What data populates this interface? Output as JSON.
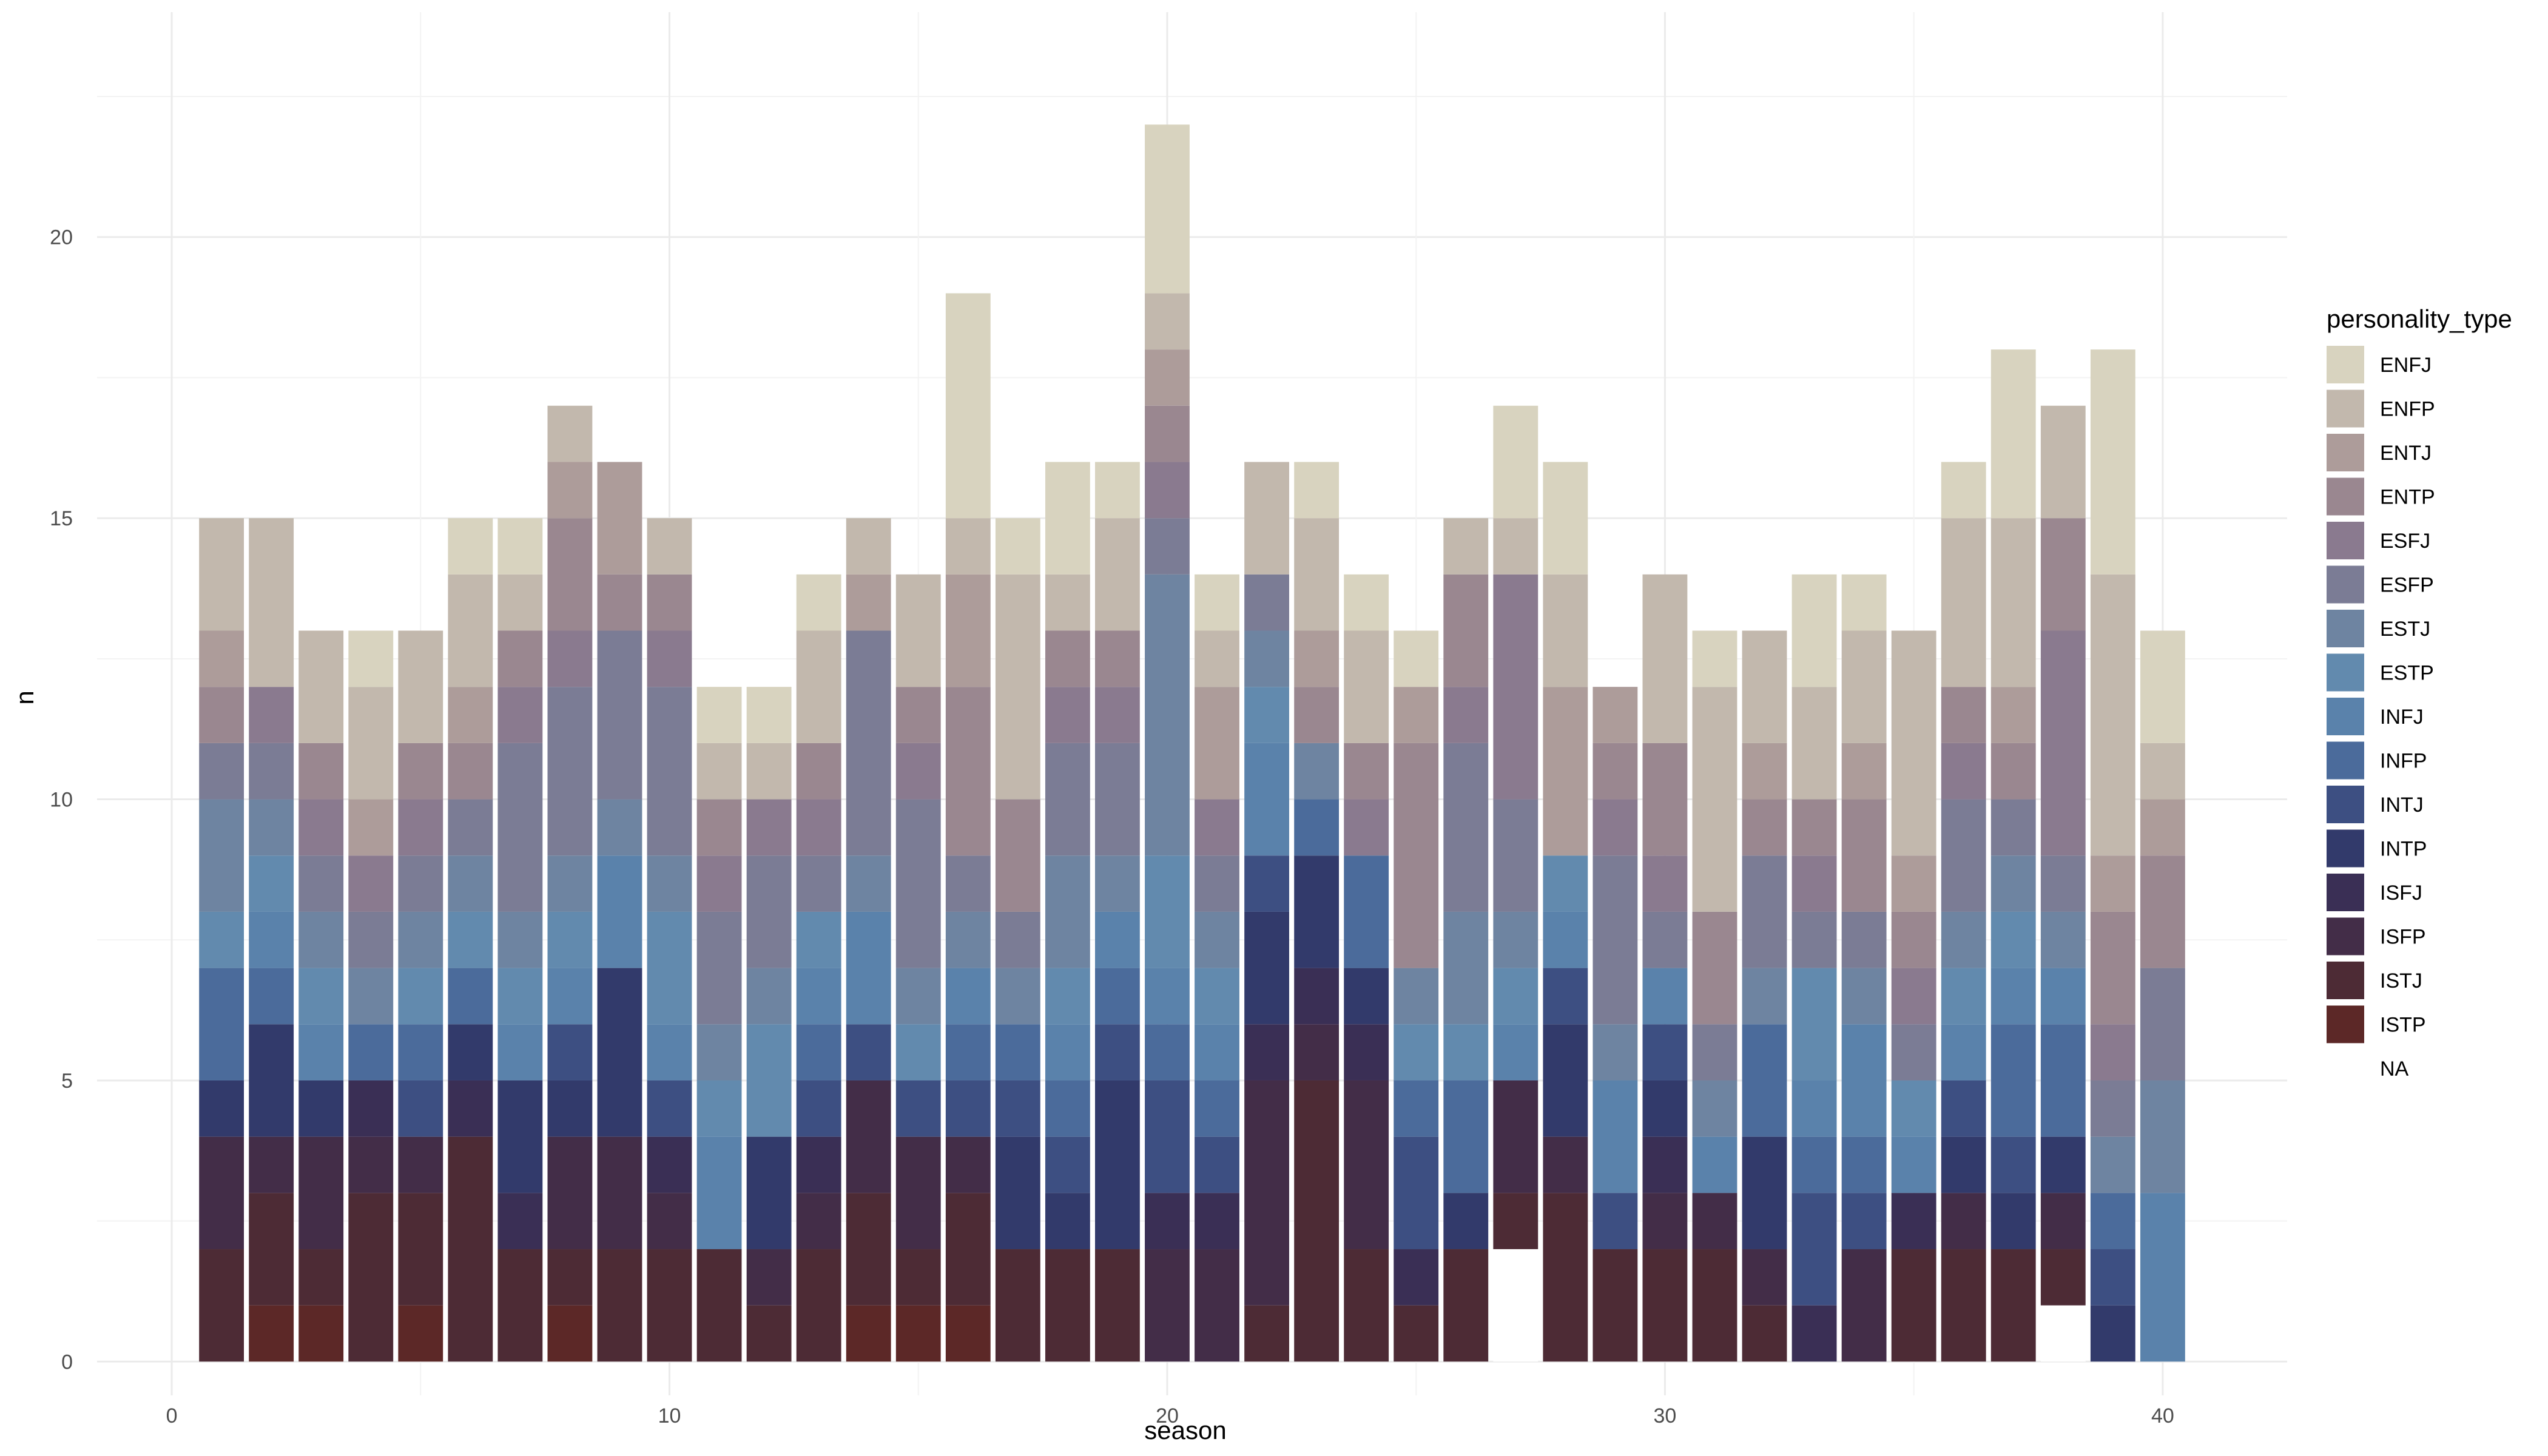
{
  "chart_data": {
    "type": "bar",
    "stacked": true,
    "xlabel": "season",
    "ylabel": "n",
    "xlim": [
      -1.5,
      42.5
    ],
    "ylim": [
      -0.6,
      24
    ],
    "x_ticks": [
      0,
      10,
      20,
      30,
      40
    ],
    "y_ticks": [
      0,
      5,
      10,
      15,
      20
    ],
    "grid": true,
    "legend": {
      "title": "personality_type",
      "position": "right"
    },
    "types": [
      "ENFJ",
      "ENFP",
      "ENTJ",
      "ENTP",
      "ESFJ",
      "ESFP",
      "ESTJ",
      "ESTP",
      "INFJ",
      "INFP",
      "INTJ",
      "INTP",
      "ISFJ",
      "ISFP",
      "ISTJ",
      "ISTP",
      "NA"
    ],
    "colors": {
      "ENFJ": "#d8d3bf",
      "ENFP": "#c2b8ad",
      "ENTJ": "#ad9c9a",
      "ENTP": "#9a8790",
      "ESFJ": "#8a7a8f",
      "ESFP": "#7b7c95",
      "ESTJ": "#6e84a1",
      "ESTP": "#628aae",
      "INFJ": "#5a82ab",
      "INFP": "#4b6b9b",
      "INTJ": "#3d4f82",
      "INTP": "#323a6b",
      "ISFJ": "#3a2f55",
      "ISFP": "#432d48",
      "ISTJ": "#4d2b35",
      "ISTP": "#5c2827",
      "NA": "#ffffff"
    },
    "x": [
      1,
      2,
      3,
      4,
      5,
      6,
      7,
      8,
      9,
      10,
      11,
      12,
      13,
      14,
      15,
      16,
      17,
      18,
      19,
      20,
      21,
      22,
      23,
      24,
      25,
      26,
      27,
      28,
      29,
      30,
      31,
      32,
      33,
      34,
      35,
      36,
      37,
      38,
      39,
      40
    ],
    "series": [
      {
        "name": "ENFJ",
        "values": [
          0,
          0,
          0,
          1,
          0,
          1,
          1,
          0,
          0,
          0,
          1,
          1,
          1,
          0,
          0,
          4,
          1,
          2,
          1,
          3,
          1,
          0,
          1,
          1,
          1,
          0,
          2,
          2,
          0,
          0,
          1,
          0,
          2,
          1,
          0,
          1,
          3,
          0,
          4,
          2
        ]
      },
      {
        "name": "ENFP",
        "values": [
          2,
          3,
          2,
          2,
          2,
          2,
          1,
          1,
          0,
          1,
          1,
          1,
          2,
          1,
          2,
          1,
          4,
          1,
          2,
          1,
          1,
          2,
          2,
          2,
          0,
          1,
          1,
          2,
          0,
          3,
          4,
          2,
          2,
          2,
          4,
          3,
          3,
          2,
          5,
          1
        ]
      },
      {
        "name": "ENTJ",
        "values": [
          1,
          0,
          0,
          1,
          0,
          1,
          0,
          1,
          2,
          0,
          0,
          0,
          0,
          1,
          0,
          2,
          0,
          0,
          0,
          1,
          2,
          0,
          1,
          0,
          1,
          0,
          0,
          3,
          1,
          0,
          0,
          1,
          0,
          1,
          1,
          0,
          1,
          0,
          1,
          1
        ]
      },
      {
        "name": "ENTP",
        "values": [
          1,
          0,
          1,
          0,
          1,
          1,
          1,
          2,
          1,
          1,
          1,
          0,
          1,
          0,
          1,
          3,
          2,
          1,
          1,
          1,
          0,
          0,
          1,
          1,
          4,
          2,
          0,
          0,
          1,
          2,
          2,
          1,
          1,
          2,
          1,
          1,
          1,
          2,
          2,
          2
        ]
      },
      {
        "name": "ESFJ",
        "values": [
          0,
          1,
          1,
          1,
          1,
          0,
          1,
          1,
          0,
          1,
          1,
          1,
          1,
          0,
          1,
          0,
          0,
          1,
          1,
          1,
          1,
          0,
          0,
          1,
          0,
          1,
          4,
          0,
          1,
          1,
          0,
          0,
          1,
          0,
          1,
          1,
          0,
          4,
          1,
          0
        ]
      },
      {
        "name": "ESFP",
        "values": [
          1,
          1,
          1,
          1,
          1,
          1,
          3,
          3,
          3,
          3,
          2,
          2,
          1,
          4,
          3,
          1,
          1,
          2,
          2,
          1,
          1,
          1,
          0,
          0,
          0,
          3,
          2,
          0,
          3,
          1,
          1,
          2,
          1,
          1,
          1,
          2,
          1,
          1,
          1,
          2
        ]
      },
      {
        "name": "ESTJ",
        "values": [
          2,
          1,
          1,
          1,
          1,
          1,
          1,
          1,
          1,
          1,
          1,
          1,
          0,
          1,
          1,
          1,
          1,
          2,
          1,
          5,
          1,
          1,
          1,
          0,
          1,
          2,
          1,
          0,
          1,
          0,
          1,
          1,
          0,
          1,
          0,
          1,
          1,
          1,
          1,
          2
        ]
      },
      {
        "name": "ESTP",
        "values": [
          1,
          1,
          1,
          0,
          1,
          1,
          1,
          1,
          0,
          2,
          1,
          2,
          1,
          0,
          1,
          0,
          0,
          1,
          0,
          2,
          1,
          1,
          0,
          0,
          1,
          1,
          1,
          1,
          0,
          0,
          0,
          0,
          2,
          0,
          1,
          1,
          1,
          0,
          0,
          0
        ]
      },
      {
        "name": "INFJ",
        "values": [
          0,
          1,
          1,
          0,
          0,
          0,
          1,
          1,
          2,
          1,
          2,
          0,
          1,
          2,
          0,
          1,
          0,
          1,
          1,
          1,
          1,
          2,
          0,
          0,
          0,
          0,
          1,
          1,
          2,
          1,
          1,
          0,
          1,
          2,
          1,
          1,
          1,
          1,
          0,
          3
        ]
      },
      {
        "name": "INFP",
        "values": [
          2,
          1,
          0,
          1,
          1,
          1,
          0,
          0,
          0,
          0,
          0,
          0,
          1,
          0,
          0,
          1,
          1,
          1,
          1,
          1,
          1,
          0,
          1,
          2,
          1,
          2,
          0,
          0,
          0,
          0,
          0,
          2,
          1,
          1,
          0,
          0,
          2,
          2,
          1,
          0
        ]
      },
      {
        "name": "INTJ",
        "values": [
          0,
          0,
          0,
          0,
          1,
          0,
          0,
          1,
          0,
          1,
          0,
          0,
          1,
          1,
          1,
          1,
          1,
          1,
          1,
          2,
          1,
          1,
          0,
          0,
          2,
          0,
          0,
          1,
          1,
          1,
          0,
          0,
          2,
          1,
          0,
          1,
          1,
          0,
          1,
          0
        ]
      },
      {
        "name": "INTP",
        "values": [
          1,
          2,
          1,
          0,
          0,
          1,
          2,
          1,
          3,
          0,
          0,
          2,
          0,
          0,
          0,
          0,
          2,
          1,
          3,
          0,
          0,
          2,
          2,
          1,
          0,
          1,
          0,
          2,
          0,
          1,
          0,
          2,
          0,
          0,
          0,
          1,
          1,
          1,
          1,
          0
        ]
      },
      {
        "name": "ISFJ",
        "values": [
          0,
          0,
          0,
          1,
          0,
          1,
          1,
          0,
          0,
          1,
          0,
          0,
          1,
          0,
          0,
          0,
          0,
          0,
          0,
          1,
          1,
          1,
          1,
          1,
          1,
          0,
          0,
          0,
          0,
          1,
          0,
          0,
          1,
          0,
          1,
          0,
          0,
          0,
          0,
          0
        ]
      },
      {
        "name": "ISFP",
        "values": [
          2,
          1,
          2,
          1,
          1,
          0,
          0,
          2,
          2,
          1,
          0,
          1,
          1,
          2,
          2,
          1,
          0,
          0,
          0,
          2,
          2,
          4,
          1,
          3,
          0,
          0,
          2,
          1,
          0,
          1,
          1,
          1,
          0,
          2,
          0,
          1,
          0,
          1,
          0,
          0
        ]
      },
      {
        "name": "ISTJ",
        "values": [
          2,
          2,
          1,
          3,
          2,
          4,
          2,
          1,
          2,
          2,
          2,
          1,
          2,
          2,
          1,
          2,
          2,
          2,
          2,
          0,
          0,
          1,
          5,
          2,
          1,
          2,
          1,
          3,
          2,
          2,
          2,
          1,
          0,
          0,
          2,
          2,
          2,
          1,
          0,
          0
        ]
      },
      {
        "name": "ISTP",
        "values": [
          0,
          1,
          1,
          0,
          1,
          0,
          0,
          1,
          0,
          0,
          0,
          0,
          0,
          1,
          1,
          1,
          0,
          0,
          0,
          0,
          0,
          0,
          0,
          0,
          0,
          0,
          0,
          0,
          0,
          0,
          0,
          0,
          0,
          0,
          0,
          0,
          0,
          0,
          0,
          0
        ]
      },
      {
        "name": "NA",
        "values": [
          0,
          0,
          0,
          0,
          0,
          0,
          0,
          0,
          0,
          0,
          0,
          0,
          0,
          0,
          0,
          0,
          0,
          0,
          0,
          0,
          0,
          0,
          0,
          0,
          0,
          0,
          2,
          0,
          0,
          0,
          0,
          0,
          0,
          0,
          0,
          0,
          0,
          1,
          0,
          0
        ]
      }
    ]
  }
}
